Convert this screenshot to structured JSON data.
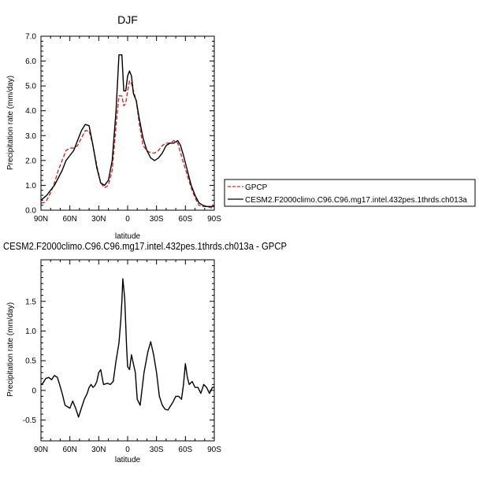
{
  "colors": {
    "gpcp": "#d62728",
    "model": "#000000",
    "axis": "#000000",
    "background": "#ffffff"
  },
  "legend": {
    "gpcp_label": "GPCP",
    "model_label": "CESM2.F2000climo.C96.C96.mg17.intel.432pes.1thrds.ch013a"
  },
  "chart_data": [
    {
      "type": "line",
      "title": "DJF",
      "xlabel": "latitude",
      "ylabel": "Precipitation rate (mm/day)",
      "xlim": [
        90,
        -90
      ],
      "ylim": [
        0,
        7
      ],
      "xticks": [
        90,
        60,
        30,
        0,
        -30,
        -60,
        -90
      ],
      "xtick_labels": [
        "90N",
        "60N",
        "30N",
        "0",
        "30S",
        "60S",
        "90S"
      ],
      "yticks": [
        0,
        1,
        2,
        3,
        4,
        5,
        6,
        7
      ],
      "ytick_labels": [
        "0.0",
        "1.0",
        "2.0",
        "3.0",
        "4.0",
        "5.0",
        "6.0",
        "7.0"
      ],
      "series": [
        {
          "name": "GPCP",
          "style": "dashed",
          "lat": [
            90,
            87,
            84,
            80,
            76,
            72,
            68,
            64,
            60,
            56,
            52,
            48,
            44,
            40,
            36,
            32,
            28,
            24,
            20,
            16,
            12,
            9,
            6,
            4,
            2,
            0,
            -2,
            -4,
            -6,
            -9,
            -12,
            -16,
            -20,
            -24,
            -28,
            -32,
            -36,
            -40,
            -44,
            -48,
            -52,
            -55,
            -58,
            -62,
            -66,
            -70,
            -74,
            -78,
            -82,
            -86,
            -90
          ],
          "values": [
            0.3,
            0.3,
            0.4,
            0.7,
            1.1,
            1.6,
            2.0,
            2.4,
            2.5,
            2.5,
            2.6,
            2.9,
            3.2,
            3.2,
            2.6,
            1.8,
            1.1,
            0.9,
            1.0,
            1.6,
            3.4,
            4.6,
            4.6,
            4.2,
            4.3,
            4.8,
            5.2,
            5.1,
            4.8,
            4.4,
            3.5,
            2.6,
            2.4,
            2.3,
            2.3,
            2.4,
            2.6,
            2.7,
            2.7,
            2.8,
            2.7,
            2.3,
            1.9,
            1.4,
            0.9,
            0.5,
            0.2,
            0.15,
            0.15,
            0.1,
            0.1
          ]
        },
        {
          "name": "CESM2.F2000climo.C96.C96.mg17.intel.432pes.1thrds.ch013a",
          "style": "solid",
          "lat": [
            90,
            87,
            84,
            80,
            76,
            72,
            68,
            64,
            60,
            56,
            52,
            48,
            44,
            40,
            36,
            32,
            28,
            24,
            20,
            16,
            12,
            9,
            6,
            4,
            2,
            0,
            -2,
            -4,
            -6,
            -9,
            -12,
            -16,
            -20,
            -24,
            -28,
            -32,
            -36,
            -40,
            -44,
            -48,
            -52,
            -55,
            -58,
            -62,
            -66,
            -70,
            -74,
            -78,
            -82,
            -86,
            -90
          ],
          "values": [
            0.4,
            0.5,
            0.6,
            0.8,
            1.0,
            1.3,
            1.6,
            2.0,
            2.2,
            2.4,
            2.8,
            3.2,
            3.45,
            3.4,
            2.6,
            1.7,
            1.1,
            1.0,
            1.2,
            2.0,
            4.0,
            6.25,
            6.25,
            4.8,
            4.8,
            5.4,
            5.6,
            5.4,
            4.7,
            4.4,
            3.7,
            2.9,
            2.4,
            2.1,
            2.0,
            2.1,
            2.3,
            2.6,
            2.7,
            2.7,
            2.8,
            2.6,
            2.2,
            1.6,
            1.0,
            0.6,
            0.3,
            0.2,
            0.15,
            0.15,
            0.15
          ]
        }
      ]
    },
    {
      "type": "line",
      "title": "CESM2.F2000climo.C96.C96.mg17.intel.432pes.1thrds.ch013a - GPCP",
      "xlabel": "latitude",
      "ylabel": "Precipitation rate (mm/day)",
      "xlim": [
        90,
        -90
      ],
      "ylim": [
        -0.85,
        2.2
      ],
      "xticks": [
        90,
        60,
        30,
        0,
        -30,
        -60,
        -90
      ],
      "xtick_labels": [
        "90N",
        "60N",
        "30N",
        "0",
        "30S",
        "60S",
        "90S"
      ],
      "yticks": [
        -0.5,
        0,
        0.5,
        1,
        1.5
      ],
      "ytick_labels": [
        "-0.5",
        "0",
        "0.5",
        "1.0",
        "1.5"
      ],
      "series": [
        {
          "name": "CESM2.F2000climo.C96.C96.mg17.intel.432pes.1thrds.ch013a - GPCP",
          "style": "solid",
          "lat": [
            90,
            88,
            85,
            82,
            79,
            76,
            73,
            71,
            68,
            65,
            62,
            60,
            57,
            54,
            51,
            48,
            45,
            42,
            40,
            38,
            36,
            34,
            32,
            30,
            28,
            25,
            21,
            18,
            15,
            12,
            10,
            9,
            8,
            7,
            6,
            5,
            3,
            1,
            0,
            -2,
            -4,
            -6,
            -8,
            -10,
            -13,
            -17,
            -21,
            -24,
            -27,
            -30,
            -33,
            -36,
            -39,
            -42,
            -45,
            -47,
            -50,
            -53,
            -56,
            -58,
            -60,
            -62,
            -64,
            -67,
            -70,
            -73,
            -76,
            -79,
            -82,
            -85,
            -88,
            -90
          ],
          "values": [
            0.1,
            0.12,
            0.2,
            0.22,
            0.18,
            0.25,
            0.22,
            0.12,
            -0.05,
            -0.25,
            -0.28,
            -0.3,
            -0.18,
            -0.3,
            -0.45,
            -0.3,
            -0.15,
            -0.05,
            0.05,
            0.1,
            0.05,
            0.08,
            0.15,
            0.3,
            0.35,
            0.1,
            0.12,
            0.1,
            0.15,
            0.5,
            0.7,
            0.8,
            1.0,
            1.2,
            1.5,
            1.88,
            1.55,
            0.7,
            0.4,
            0.35,
            0.6,
            0.45,
            0.3,
            -0.15,
            -0.25,
            0.3,
            0.65,
            0.82,
            0.6,
            0.3,
            -0.1,
            -0.25,
            -0.32,
            -0.33,
            -0.25,
            -0.2,
            -0.1,
            -0.1,
            -0.15,
            0.1,
            0.45,
            0.22,
            0.1,
            0.15,
            0.05,
            0.05,
            -0.05,
            0.1,
            0.05,
            -0.05,
            0.05,
            0.05
          ]
        }
      ]
    }
  ]
}
